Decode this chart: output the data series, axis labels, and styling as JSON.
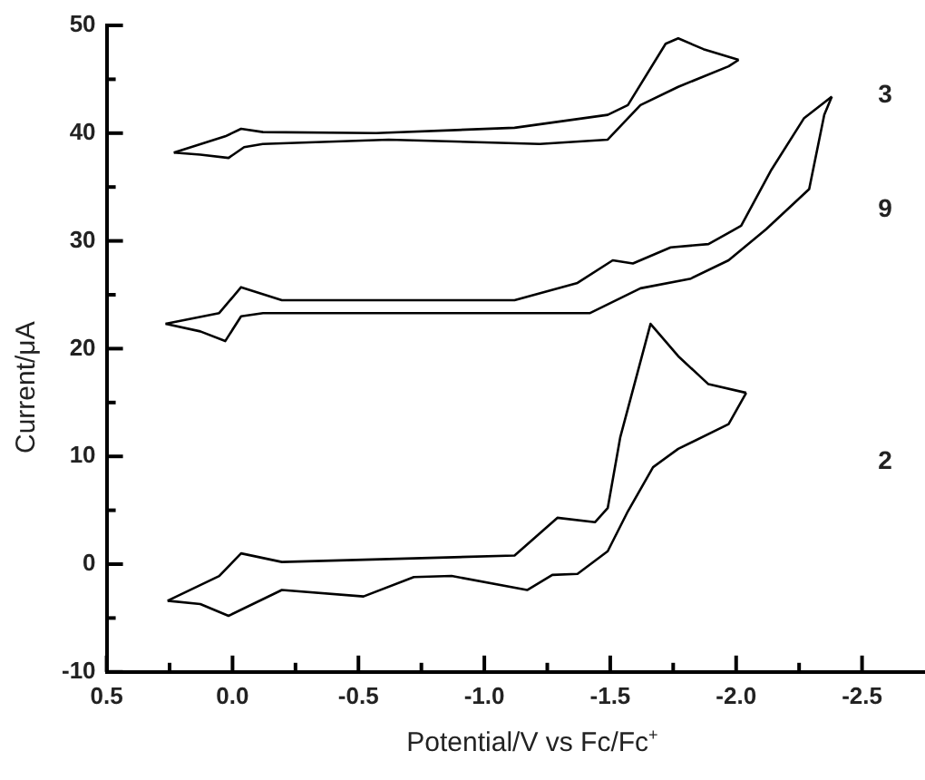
{
  "chart_data": {
    "type": "line",
    "xlabel": "Potential/V vs Fc/Fc$^{+}$",
    "ylabel": "Current/μA",
    "xlim": [
      0.5,
      -2.75
    ],
    "ylim": [
      -10,
      50
    ],
    "xticks": [
      0.5,
      {
        "value": 0.25,
        "label": null
      },
      {
        "value": 0,
        "label": "0.0"
      },
      {
        "value": -0.25,
        "label": null
      },
      -0.5,
      {
        "value": -0.75,
        "label": null
      },
      {
        "value": -1,
        "label": "-1.0"
      },
      {
        "value": -1.25,
        "label": null
      },
      -1.5,
      {
        "value": -1.75,
        "label": null
      },
      {
        "value": -2,
        "label": "-2.0"
      },
      {
        "value": -2.25,
        "label": null
      },
      -2.5
    ],
    "yticks": [
      -10,
      {
        "value": -5,
        "label": null
      },
      0,
      {
        "value": 5,
        "label": null
      },
      10,
      {
        "value": 15,
        "label": null
      },
      20,
      {
        "value": 25,
        "label": null
      },
      30,
      {
        "value": 35,
        "label": null
      },
      40,
      {
        "value": 45,
        "label": null
      },
      50
    ],
    "grid": false,
    "legend": false,
    "marker": "none",
    "line_style": "solid",
    "series": [
      {
        "name": "3",
        "color": "#000000",
        "x": [
          0.233,
          0.029,
          -0.034,
          -0.121,
          -0.57,
          -1.12,
          -1.49,
          -1.57,
          -1.72,
          -1.77,
          -1.87,
          -2.01
        ],
        "values": [
          38.2,
          39.7,
          40.4,
          40.1,
          40.0,
          40.5,
          41.7,
          42.6,
          48.3,
          48.8,
          47.8,
          46.8
        ]
      },
      {
        "color": "#000000",
        "x": [
          -2.01,
          -1.97,
          -1.77,
          -1.62,
          -1.49,
          -1.22,
          -0.62,
          -0.12,
          -0.046,
          0.016,
          0.128,
          0.233
        ],
        "values": [
          46.8,
          46.2,
          44.3,
          42.6,
          39.4,
          39.0,
          39.4,
          39.0,
          38.7,
          37.7,
          38.0,
          38.2
        ]
      },
      {
        "name": "9",
        "color": "#000000",
        "x": [
          0.266,
          0.053,
          -0.034,
          -0.196,
          -1.12,
          -1.37,
          -1.51,
          -1.59,
          -1.74,
          -1.89,
          -2.02,
          -2.14,
          -2.27,
          -2.38
        ],
        "values": [
          22.3,
          23.3,
          25.7,
          24.5,
          24.5,
          26.1,
          28.2,
          27.9,
          29.4,
          29.7,
          31.4,
          36.6,
          41.4,
          43.4
        ]
      },
      {
        "color": "#000000",
        "x": [
          -2.38,
          -2.35,
          -2.29,
          -2.12,
          -1.97,
          -1.82,
          -1.62,
          -1.42,
          -0.87,
          -0.121,
          -0.034,
          0.029,
          0.128,
          0.266
        ],
        "values": [
          43.4,
          41.7,
          34.8,
          31.1,
          28.2,
          26.5,
          25.6,
          23.3,
          23.3,
          23.3,
          23.0,
          20.7,
          21.6,
          22.3
        ]
      },
      {
        "name": "2",
        "color": "#000000",
        "x": [
          0.258,
          0.053,
          -0.034,
          -0.196,
          -1.12,
          -1.29,
          -1.44,
          -1.49,
          -1.54,
          -1.66,
          -1.77,
          -1.89,
          -2.04
        ],
        "values": [
          -3.4,
          -1.1,
          1.0,
          0.2,
          0.8,
          4.3,
          3.9,
          5.2,
          11.8,
          22.3,
          19.3,
          16.7,
          15.9
        ]
      },
      {
        "color": "#000000",
        "x": [
          -2.04,
          -1.97,
          -1.77,
          -1.67,
          -1.57,
          -1.49,
          -1.37,
          -1.27,
          -1.17,
          -0.87,
          -0.72,
          -0.52,
          -0.196,
          0.016,
          0.128,
          0.258
        ],
        "values": [
          15.9,
          13.0,
          10.7,
          9.0,
          4.9,
          1.2,
          -0.9,
          -1.0,
          -2.4,
          -1.1,
          -1.2,
          -3.0,
          -2.4,
          -4.8,
          -3.7,
          -3.4
        ]
      }
    ]
  }
}
